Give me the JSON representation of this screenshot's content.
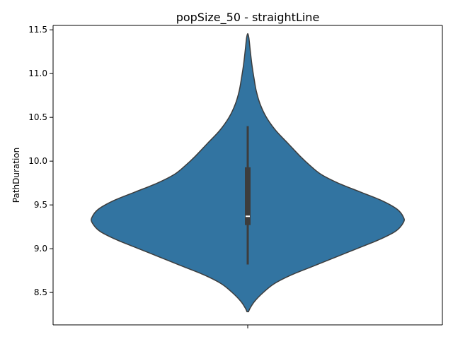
{
  "chart_data": {
    "type": "violin",
    "title": "popSize_50 - straightLine",
    "xlabel": "",
    "ylabel": "PathDuration",
    "ylim": [
      8.13,
      11.55
    ],
    "yticks": [
      8.5,
      9.0,
      9.5,
      10.0,
      10.5,
      11.0,
      11.5
    ],
    "ytick_labels": [
      "8.5",
      "9.0",
      "9.5",
      "10.0",
      "10.5",
      "11.0",
      "11.5"
    ],
    "grid": false,
    "legend": "none",
    "color": "#3274a1",
    "outline_color": "#3d3d3d",
    "box_color": "#3d3d3d",
    "median_color": "#ffffff",
    "series": [
      {
        "name": "",
        "min": 8.28,
        "max": 11.45,
        "whisker_low": 8.82,
        "whisker_high": 10.4,
        "q1": 9.27,
        "median": 9.37,
        "q3": 9.93,
        "density_profile": [
          [
            8.28,
            0.005
          ],
          [
            8.32,
            0.015
          ],
          [
            8.4,
            0.045
          ],
          [
            8.5,
            0.1
          ],
          [
            8.6,
            0.17
          ],
          [
            8.7,
            0.28
          ],
          [
            8.8,
            0.42
          ],
          [
            8.9,
            0.56
          ],
          [
            9.0,
            0.7
          ],
          [
            9.1,
            0.84
          ],
          [
            9.2,
            0.95
          ],
          [
            9.3,
            1.0
          ],
          [
            9.36,
            1.0
          ],
          [
            9.45,
            0.96
          ],
          [
            9.55,
            0.86
          ],
          [
            9.65,
            0.72
          ],
          [
            9.75,
            0.58
          ],
          [
            9.85,
            0.47
          ],
          [
            9.95,
            0.4
          ],
          [
            10.05,
            0.34
          ],
          [
            10.2,
            0.26
          ],
          [
            10.35,
            0.18
          ],
          [
            10.5,
            0.12
          ],
          [
            10.65,
            0.08
          ],
          [
            10.8,
            0.055
          ],
          [
            10.95,
            0.04
          ],
          [
            11.1,
            0.027
          ],
          [
            11.25,
            0.017
          ],
          [
            11.4,
            0.008
          ],
          [
            11.45,
            0.002
          ]
        ]
      }
    ]
  }
}
